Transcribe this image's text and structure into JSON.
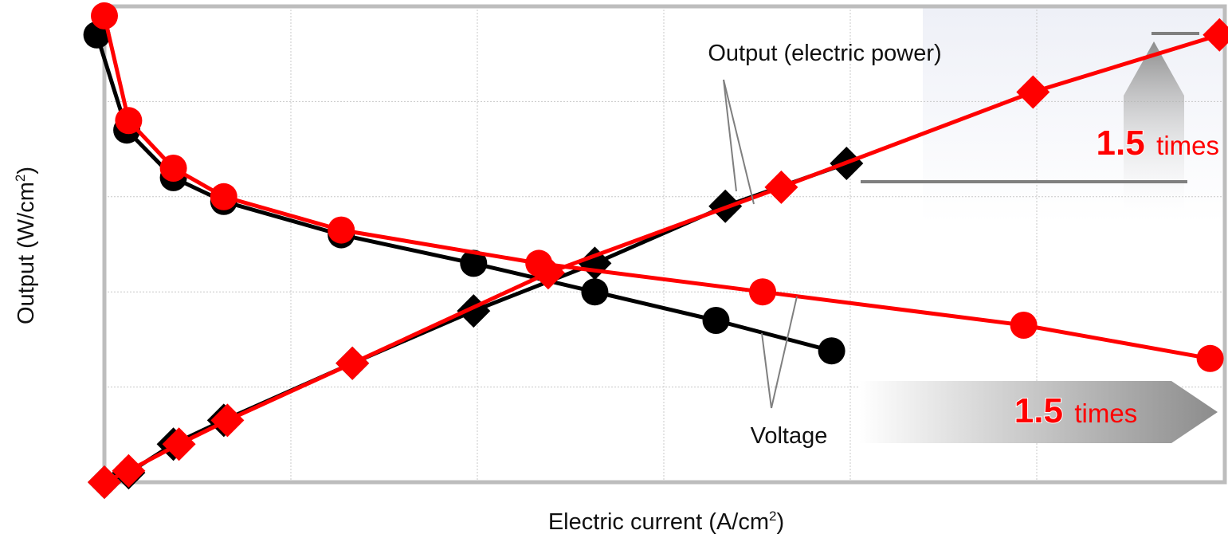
{
  "chart_data": {
    "type": "line",
    "title": "",
    "xlabel": {
      "main": "Electric current (A/cm",
      "sup": "2",
      "tail": ")"
    },
    "ylabel": {
      "main": "Output (W/cm",
      "sup": "2",
      "tail": ")"
    },
    "xlim": [
      0,
      6
    ],
    "ylim": [
      0,
      5
    ],
    "grid": true,
    "legend": "none",
    "series": [
      {
        "group": "conventional",
        "kind": "voltage",
        "marker": "circle",
        "color": "#000000",
        "points": [
          [
            -0.04,
            4.7
          ],
          [
            0.12,
            3.7
          ],
          [
            0.37,
            3.2
          ],
          [
            0.64,
            2.95
          ],
          [
            1.27,
            2.6
          ],
          [
            1.98,
            2.3
          ],
          [
            2.63,
            2.0
          ],
          [
            3.28,
            1.7
          ],
          [
            3.9,
            1.38
          ]
        ]
      },
      {
        "group": "new",
        "kind": "voltage",
        "marker": "circle",
        "color": "#ff0000",
        "points": [
          [
            0.0,
            4.9
          ],
          [
            0.13,
            3.8
          ],
          [
            0.37,
            3.3
          ],
          [
            0.64,
            3.0
          ],
          [
            1.27,
            2.65
          ],
          [
            2.33,
            2.3
          ],
          [
            3.53,
            2.0
          ],
          [
            4.93,
            1.65
          ],
          [
            5.93,
            1.3
          ]
        ]
      },
      {
        "group": "conventional",
        "kind": "output",
        "marker": "diamond",
        "color": "#000000",
        "points": [
          [
            0.0,
            0.0
          ],
          [
            0.13,
            0.1
          ],
          [
            0.37,
            0.4
          ],
          [
            0.64,
            0.65
          ],
          [
            1.33,
            1.25
          ],
          [
            1.98,
            1.8
          ],
          [
            2.63,
            2.3
          ],
          [
            3.33,
            2.9
          ],
          [
            3.98,
            3.35
          ]
        ]
      },
      {
        "group": "new",
        "kind": "output",
        "marker": "diamond",
        "color": "#ff0000",
        "points": [
          [
            0.0,
            0.0
          ],
          [
            0.13,
            0.12
          ],
          [
            0.4,
            0.4
          ],
          [
            0.66,
            0.65
          ],
          [
            1.33,
            1.25
          ],
          [
            2.38,
            2.2
          ],
          [
            3.63,
            3.1
          ],
          [
            4.98,
            4.1
          ],
          [
            5.98,
            4.7
          ]
        ]
      }
    ],
    "annotations": {
      "output_label": "Output (electric power)",
      "voltage_label": "Voltage",
      "ratio_vertical": {
        "number": "1.5",
        "word": "times"
      },
      "ratio_horizontal": {
        "number": "1.5",
        "word": "times"
      }
    }
  },
  "colors": {
    "red": "#ff0000",
    "black": "#000000",
    "frame": "#bdbdbd",
    "grid": "#c8c8c8",
    "pointer": "#7f7f7f",
    "arrow_gray": "#8c8c8c",
    "arrow_panel": "#eef0f7"
  }
}
